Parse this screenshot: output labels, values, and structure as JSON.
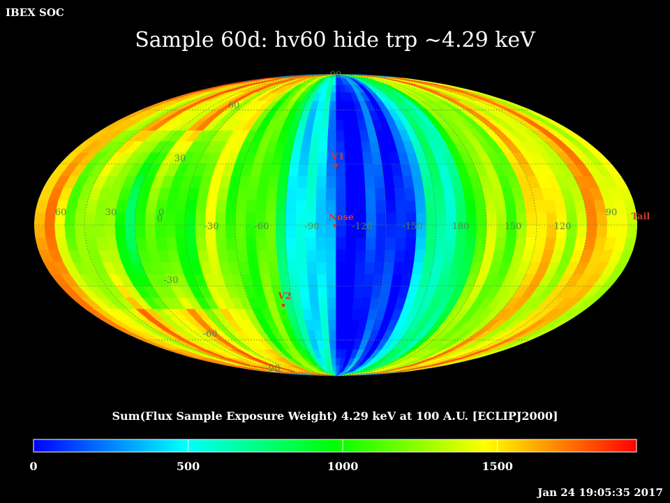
{
  "header": {
    "org_label": "IBEX SOC",
    "title": "Sample 60d: hv60 hide trp ~4.29 keV"
  },
  "map": {
    "projection": "Mollweide (ecliptic, longitude decreasing to the right)",
    "center_longitude_deg": 100,
    "graticule_color": "#4b8a4b",
    "lat_labels": [
      "90",
      "60",
      "30",
      "0",
      "-30",
      "-60",
      "-90"
    ],
    "lon_labels": [
      "60",
      "30",
      "0",
      "-30",
      "-60",
      "-90",
      "-120",
      "-150",
      "180",
      "150",
      "120",
      "90"
    ],
    "markers": [
      {
        "label": "V1",
        "lon": -105,
        "lat": 34,
        "color": "#d03a2a"
      },
      {
        "label": "Nose",
        "lon": -100,
        "lat": -5,
        "color": "#d03a2a"
      },
      {
        "label": "V2",
        "lon": -70,
        "lat": -33,
        "color": "#d03a2a"
      },
      {
        "label": "Tail",
        "lon": 80,
        "lat": 5,
        "color": "#d03a2a"
      }
    ]
  },
  "colorbar": {
    "caption": "Sum(Flux Sample Exposure Weight)  4.29 keV at 100 A.U. [ECLIPJ2000]",
    "min": 0,
    "max": 1950,
    "tick_labels": [
      "0",
      "500",
      "1000",
      "1500"
    ],
    "tick_values": [
      0,
      500,
      1000,
      1500
    ],
    "colors": [
      "#0000ff",
      "#00ffff",
      "#00ff00",
      "#ffff00",
      "#ff0000"
    ]
  },
  "footer": {
    "timestamp": "Jan 24 19:05:35 2017"
  }
}
